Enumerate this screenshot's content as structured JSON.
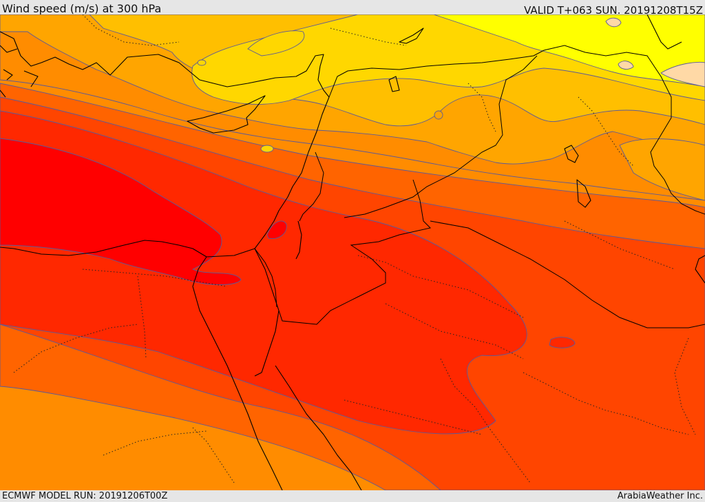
{
  "header": {
    "title": "Wind speed (m/s) at 300 hPa",
    "valid": "VALID T+063 SUN. 20191208T15Z"
  },
  "footer": {
    "model_run": "ECMWF MODEL RUN: 20191206T00Z",
    "credit": "ArabiaWeather Inc."
  },
  "map": {
    "field": "wind speed",
    "colors": {
      "pale": "#ffd9a6",
      "yellow": "#ffff00",
      "gold": "#ffd700",
      "amber": "#ffbf00",
      "orange_light": "#ffa500",
      "orange": "#ff8c00",
      "orange_red": "#ff6400",
      "red_orange": "#ff4500",
      "red_deep": "#ff2800",
      "red": "#ff0000",
      "contour_line": "#5a5a9a"
    }
  }
}
